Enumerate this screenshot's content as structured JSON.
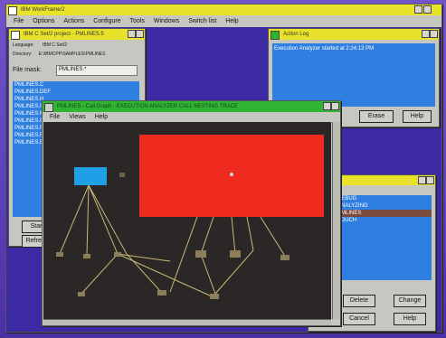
{
  "main_window": {
    "title": "IBM WorkFrame/2",
    "menu": [
      "File",
      "Options",
      "Actions",
      "Configure",
      "Tools",
      "Windows",
      "Switch list",
      "Help"
    ]
  },
  "project_window": {
    "title": "IBM C Set/2 project - PMLINES.5",
    "language_label": "Language:",
    "language_value": "IBM C Set/2",
    "directory_label": "Directory:",
    "directory_value": "E:\\IBMCPP\\SAMPLES\\PMLINES",
    "file_mask_label": "File mask:",
    "file_mask_value": "PMLINES.*",
    "files": [
      "PMLINES.C",
      "PMLINES.DEF",
      "PMLINES.H",
      "PMLINES.ICO",
      "PMLINES.MAK",
      "PMLINES.OBJ",
      "PMLINES.RC",
      "PMLINES.RES",
      "PMLINES.EXE"
    ],
    "btn_start": "Start",
    "btn_refresh": "Refresh"
  },
  "action_log": {
    "title": "Action Log",
    "message": "Execution Analyzer started at 2:24:13 PM",
    "btn_erase": "Erase",
    "btn_help": "Help"
  },
  "monitor_window": {
    "title": "PMLINES - Call Graph - EXECUTION ANALYZER CALL NESTING TRACE",
    "menu": [
      "File",
      "Views",
      "Help"
    ]
  },
  "actions_window": {
    "items": [
      "DEBUG",
      "ANALYZING",
      "PMLINES",
      "TOUCH"
    ],
    "selected_index": 2,
    "btn_delete": "Delete",
    "btn_change": "Change",
    "btn_cancel": "Cancel",
    "btn_help": "Help"
  },
  "colors": {
    "title_yellow": "#e8e32a",
    "title_green": "#2fb531",
    "graph_bg": "#2b2726",
    "big_node": "#ee2a1e",
    "small_node": "#1fa0e6",
    "list_bg": "#2f7fe0"
  }
}
